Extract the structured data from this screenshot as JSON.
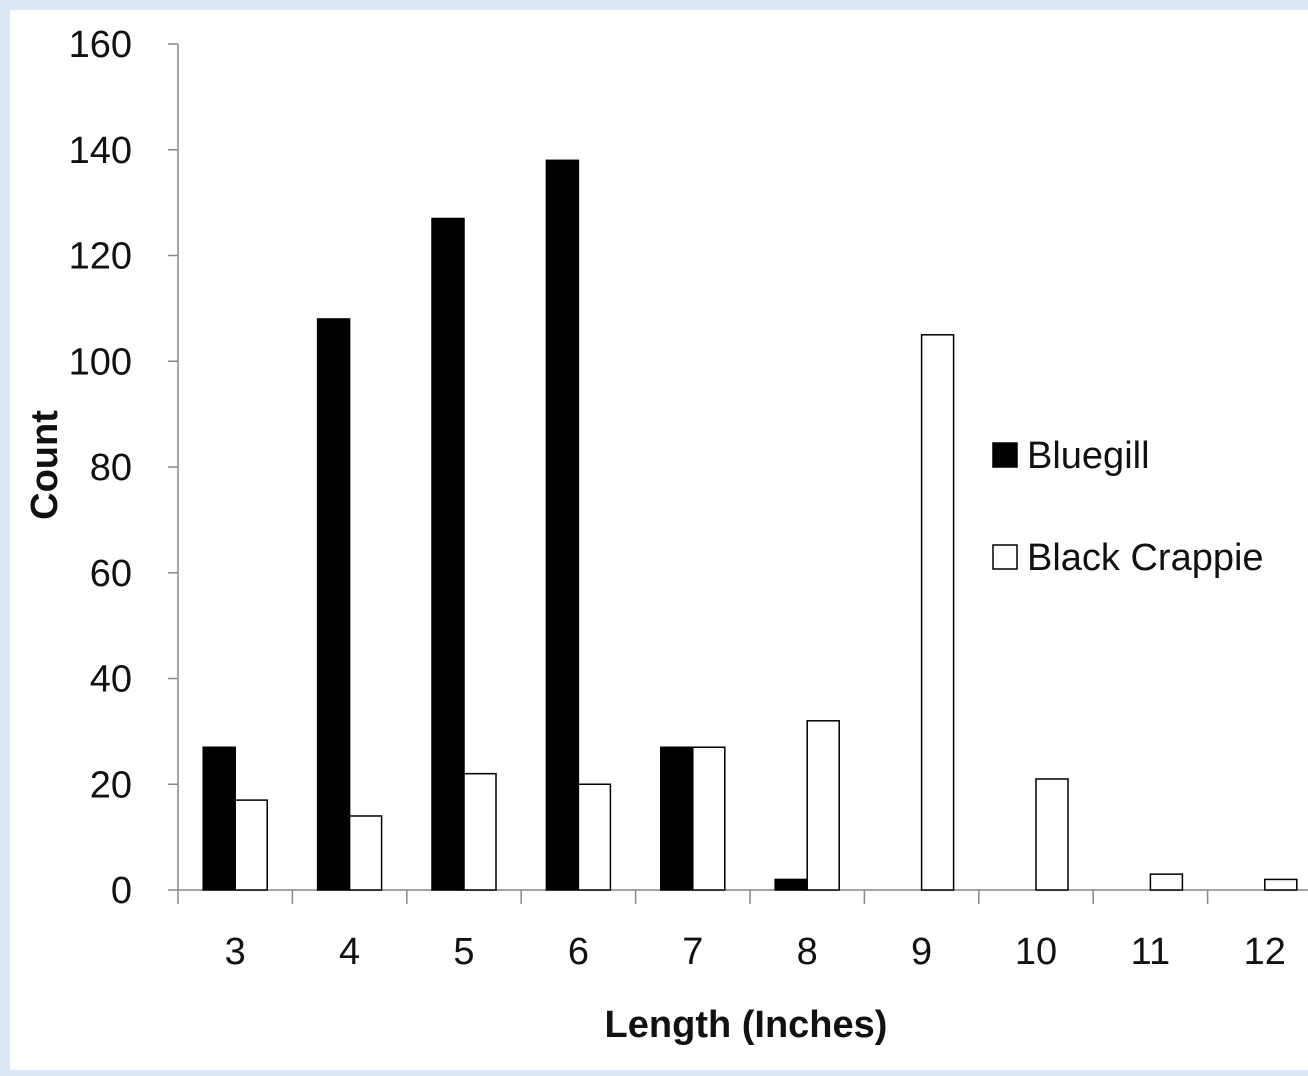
{
  "chart_data": {
    "type": "bar",
    "categories": [
      "3",
      "4",
      "5",
      "6",
      "7",
      "8",
      "9",
      "10",
      "11",
      "12"
    ],
    "series": [
      {
        "name": "Bluegill",
        "values": [
          27,
          108,
          127,
          138,
          27,
          2,
          0,
          0,
          0,
          0
        ],
        "color": "#000000"
      },
      {
        "name": "Black Crappie",
        "values": [
          17,
          14,
          22,
          20,
          27,
          32,
          105,
          21,
          3,
          2
        ],
        "color": "#ffffff"
      }
    ],
    "yticks": [
      "0",
      "20",
      "40",
      "60",
      "80",
      "100",
      "120",
      "140",
      "160"
    ],
    "xlabel": "Length (Inches)",
    "ylabel": "Count",
    "ylim": [
      0,
      160
    ],
    "legend_position": "right",
    "grid": false
  }
}
